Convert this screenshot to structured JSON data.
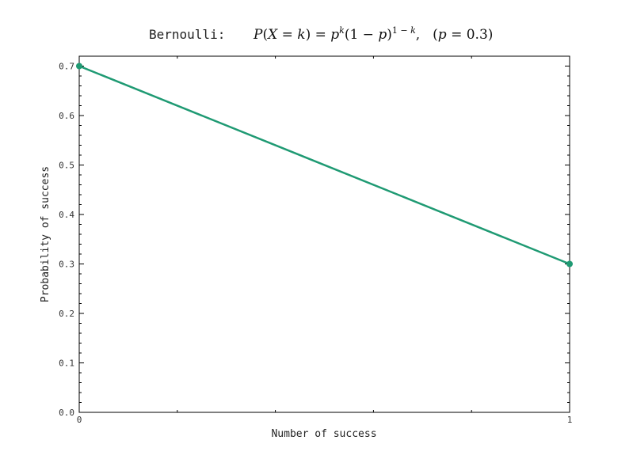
{
  "chart_data": {
    "type": "line",
    "title": {
      "prefix": "Bernoulli:",
      "formula": "P(X=k) = p^k (1−p)^{1−k},   (p=0.3)"
    },
    "xlabel": "Number of success",
    "ylabel": "Probability of success",
    "x": [
      0,
      1
    ],
    "series": [
      {
        "values": [
          0.7,
          0.3
        ],
        "color": "#1f9a73"
      }
    ],
    "xlim": [
      0,
      1
    ],
    "ylim": [
      0.0,
      0.72
    ],
    "xticks": [
      "0",
      "1"
    ],
    "yticks": [
      "0.0",
      "0.1",
      "0.2",
      "0.3",
      "0.4",
      "0.5",
      "0.6",
      "0.7"
    ],
    "grid": false,
    "legend": "none"
  }
}
